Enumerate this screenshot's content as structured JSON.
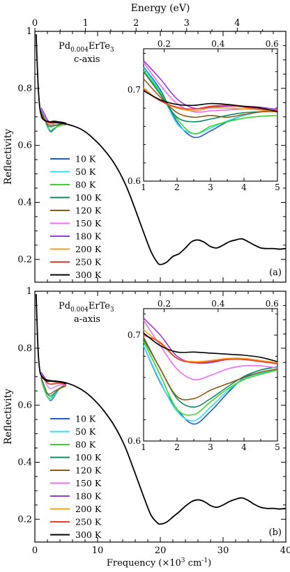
{
  "figure": {
    "top_axis_label": "Energy (eV)",
    "bottom_axis_label": "Frequency (×10³ cm⁻¹)",
    "top_ticks": [
      "0",
      "1",
      "2",
      "3",
      "4"
    ],
    "bottom_ticks": [
      "0",
      "10",
      "20",
      "30",
      "40"
    ],
    "y_axis_label": "Reflectivity",
    "y_ticks": [
      "0.2",
      "0.4",
      "0.6",
      "0.8",
      "1"
    ],
    "inset_x_ticks": [
      "1",
      "2",
      "3",
      "4",
      "5"
    ],
    "inset_top_ticks": [
      "0.2",
      "0.4",
      "0.6"
    ],
    "inset_y_ticks": [
      "0.6",
      "0.7"
    ]
  },
  "chart_data": [
    {
      "type": "line",
      "panel_label": "(a)",
      "sample_prefix": "Pd",
      "sample_subscript": "0.004",
      "sample_suffix": "ErTe",
      "sample_subscript2": "3",
      "direction": "c-axis",
      "xlabel": "Frequency (×10³ cm⁻¹)",
      "ylabel": "Reflectivity",
      "xlim": [
        0,
        40
      ],
      "ylim": [
        0.12,
        1.0
      ],
      "legend": [
        {
          "name": "10 K",
          "color": "#1f5ad6"
        },
        {
          "name": "50 K",
          "color": "#33e0f0"
        },
        {
          "name": "80 K",
          "color": "#3cd62a"
        },
        {
          "name": "100 K",
          "color": "#0e8a66"
        },
        {
          "name": "120 K",
          "color": "#8a5a14"
        },
        {
          "name": "150 K",
          "color": "#f06cf0"
        },
        {
          "name": "180 K",
          "color": "#9a3cd8"
        },
        {
          "name": "200 K",
          "color": "#f0a020"
        },
        {
          "name": "250 K",
          "color": "#f03a2a"
        },
        {
          "name": "300 K",
          "color": "#000000"
        }
      ],
      "main_common_curve": {
        "x": [
          0.2,
          0.5,
          0.8,
          1.2,
          1.8,
          2.5,
          3.5,
          4.5,
          5.5,
          6.5,
          7.5,
          8.5,
          9.5,
          10.5,
          11.5,
          12.5,
          13.5,
          14.5,
          15.5,
          16.5,
          17.5,
          18.5,
          19.5,
          20.0,
          21.0,
          22.0,
          23.0,
          24.0,
          25.0,
          26.0,
          27.0,
          28.0,
          29.0,
          30.0,
          31.0,
          32.0,
          33.0,
          34.0,
          35.0,
          36.0,
          37.0,
          38.0,
          39.0,
          40.0
        ],
        "y": [
          0.99,
          0.82,
          0.73,
          0.695,
          0.685,
          0.682,
          0.68,
          0.677,
          0.672,
          0.665,
          0.655,
          0.64,
          0.62,
          0.598,
          0.572,
          0.542,
          0.505,
          0.46,
          0.405,
          0.345,
          0.285,
          0.228,
          0.19,
          0.182,
          0.19,
          0.21,
          0.22,
          0.24,
          0.262,
          0.268,
          0.26,
          0.245,
          0.24,
          0.25,
          0.262,
          0.268,
          0.272,
          0.262,
          0.25,
          0.24,
          0.238,
          0.238,
          0.236,
          0.238
        ]
      },
      "main_low_t_dip": {
        "x": [
          1.0,
          1.5,
          2.0,
          2.5,
          3.0,
          3.5,
          4.0,
          4.5,
          5.0
        ],
        "y": [
          0.725,
          0.7,
          0.665,
          0.648,
          0.655,
          0.665,
          0.672,
          0.676,
          0.677
        ]
      },
      "inset": {
        "xlim": [
          1,
          5
        ],
        "ylim": [
          0.6,
          0.745
        ],
        "toplim": [
          0.124,
          0.62
        ],
        "x": [
          1.0,
          1.5,
          2.0,
          2.5,
          3.0,
          3.5,
          4.0,
          4.5,
          5.0
        ],
        "series": [
          {
            "name": "10 K",
            "values": [
              0.725,
              0.7,
              0.665,
              0.648,
              0.655,
              0.665,
              0.672,
              0.676,
              0.677
            ]
          },
          {
            "name": "50 K",
            "values": [
              0.724,
              0.698,
              0.663,
              0.652,
              0.658,
              0.666,
              0.672,
              0.676,
              0.677
            ]
          },
          {
            "name": "80 K",
            "values": [
              0.721,
              0.697,
              0.668,
              0.652,
              0.66,
              0.665,
              0.669,
              0.671,
              0.672
            ]
          },
          {
            "name": "100 K",
            "values": [
              0.72,
              0.695,
              0.67,
              0.665,
              0.668,
              0.672,
              0.675,
              0.676,
              0.677
            ]
          },
          {
            "name": "120 K",
            "values": [
              0.712,
              0.692,
              0.675,
              0.67,
              0.672,
              0.67,
              0.673,
              0.676,
              0.676
            ]
          },
          {
            "name": "150 K",
            "values": [
              0.73,
              0.705,
              0.685,
              0.676,
              0.677,
              0.678,
              0.679,
              0.68,
              0.679
            ]
          },
          {
            "name": "180 K",
            "values": [
              0.732,
              0.712,
              0.69,
              0.68,
              0.681,
              0.682,
              0.682,
              0.681,
              0.678
            ]
          },
          {
            "name": "200 K",
            "values": [
              0.702,
              0.688,
              0.68,
              0.677,
              0.68,
              0.68,
              0.679,
              0.678,
              0.676
            ]
          },
          {
            "name": "250 K",
            "values": [
              0.7,
              0.688,
              0.681,
              0.679,
              0.682,
              0.683,
              0.681,
              0.679,
              0.677
            ]
          },
          {
            "name": "300 K",
            "values": [
              0.699,
              0.689,
              0.684,
              0.683,
              0.685,
              0.684,
              0.682,
              0.68,
              0.676
            ]
          }
        ]
      }
    },
    {
      "type": "line",
      "panel_label": "(b)",
      "sample_prefix": "Pd",
      "sample_subscript": "0.004",
      "sample_suffix": "ErTe",
      "sample_subscript2": "3",
      "direction": "a-axis",
      "xlabel": "Frequency (×10³ cm⁻¹)",
      "ylabel": "Reflectivity",
      "xlim": [
        0,
        40
      ],
      "ylim": [
        0.12,
        1.0
      ],
      "legend": [
        {
          "name": "10 K",
          "color": "#1f5ad6"
        },
        {
          "name": "50 K",
          "color": "#33e0f0"
        },
        {
          "name": "80 K",
          "color": "#3cd62a"
        },
        {
          "name": "100 K",
          "color": "#0e8a66"
        },
        {
          "name": "120 K",
          "color": "#8a5a14"
        },
        {
          "name": "150 K",
          "color": "#f06cf0"
        },
        {
          "name": "180 K",
          "color": "#9a3cd8"
        },
        {
          "name": "200 K",
          "color": "#f0a020"
        },
        {
          "name": "250 K",
          "color": "#f03a2a"
        },
        {
          "name": "300 K",
          "color": "#000000"
        }
      ],
      "main_common_curve": {
        "x": [
          0.2,
          0.5,
          0.8,
          1.2,
          1.8,
          2.5,
          3.5,
          4.5,
          5.5,
          6.5,
          7.5,
          8.5,
          9.5,
          10.5,
          11.5,
          12.5,
          13.5,
          14.5,
          15.5,
          16.5,
          17.5,
          18.5,
          19.5,
          20.0,
          21.0,
          22.0,
          23.0,
          24.0,
          25.0,
          26.0,
          27.0,
          28.0,
          29.0,
          30.0,
          31.0,
          32.0,
          33.0,
          34.0,
          35.0,
          36.0,
          37.0,
          38.0,
          39.0,
          40.0
        ],
        "y": [
          0.99,
          0.8,
          0.72,
          0.7,
          0.69,
          0.686,
          0.684,
          0.681,
          0.675,
          0.666,
          0.654,
          0.638,
          0.618,
          0.594,
          0.566,
          0.534,
          0.495,
          0.448,
          0.39,
          0.33,
          0.27,
          0.215,
          0.188,
          0.183,
          0.19,
          0.208,
          0.226,
          0.246,
          0.262,
          0.268,
          0.262,
          0.248,
          0.242,
          0.25,
          0.262,
          0.27,
          0.275,
          0.266,
          0.252,
          0.242,
          0.238,
          0.238,
          0.236,
          0.238
        ]
      },
      "main_low_t_dip": {
        "x": [
          1.0,
          1.5,
          2.0,
          2.5,
          3.0,
          3.5,
          4.0,
          4.5,
          5.0
        ],
        "y": [
          0.69,
          0.655,
          0.63,
          0.616,
          0.628,
          0.645,
          0.66,
          0.667,
          0.67
        ]
      },
      "inset": {
        "xlim": [
          1,
          5
        ],
        "ylim": [
          0.6,
          0.725
        ],
        "toplim": [
          0.124,
          0.62
        ],
        "x": [
          1.0,
          1.5,
          2.0,
          2.5,
          3.0,
          3.5,
          4.0,
          4.5,
          5.0
        ],
        "series": [
          {
            "name": "10 K",
            "values": [
              0.69,
              0.655,
              0.63,
              0.616,
              0.628,
              0.645,
              0.66,
              0.667,
              0.67
            ]
          },
          {
            "name": "50 K",
            "values": [
              0.69,
              0.656,
              0.628,
              0.619,
              0.632,
              0.647,
              0.659,
              0.664,
              0.667
            ]
          },
          {
            "name": "80 K",
            "values": [
              0.694,
              0.662,
              0.63,
              0.625,
              0.637,
              0.649,
              0.658,
              0.663,
              0.667
            ]
          },
          {
            "name": "100 K",
            "values": [
              0.696,
              0.668,
              0.64,
              0.632,
              0.64,
              0.651,
              0.661,
              0.667,
              0.67
            ]
          },
          {
            "name": "120 K",
            "values": [
              0.698,
              0.668,
              0.642,
              0.64,
              0.648,
              0.654,
              0.66,
              0.665,
              0.668
            ]
          },
          {
            "name": "150 K",
            "values": [
              0.714,
              0.69,
              0.668,
              0.658,
              0.662,
              0.668,
              0.671,
              0.671,
              0.669
            ]
          },
          {
            "name": "180 K",
            "values": [
              0.716,
              0.7,
              0.68,
              0.674,
              0.674,
              0.677,
              0.677,
              0.675,
              0.673
            ]
          },
          {
            "name": "200 K",
            "values": [
              0.705,
              0.692,
              0.678,
              0.675,
              0.676,
              0.678,
              0.678,
              0.676,
              0.674
            ]
          },
          {
            "name": "250 K",
            "values": [
              0.7,
              0.693,
              0.678,
              0.674,
              0.675,
              0.677,
              0.677,
              0.675,
              0.673
            ]
          },
          {
            "name": "300 K",
            "values": [
              0.702,
              0.69,
              0.684,
              0.684,
              0.683,
              0.682,
              0.681,
              0.679,
              0.675
            ]
          }
        ]
      }
    }
  ]
}
